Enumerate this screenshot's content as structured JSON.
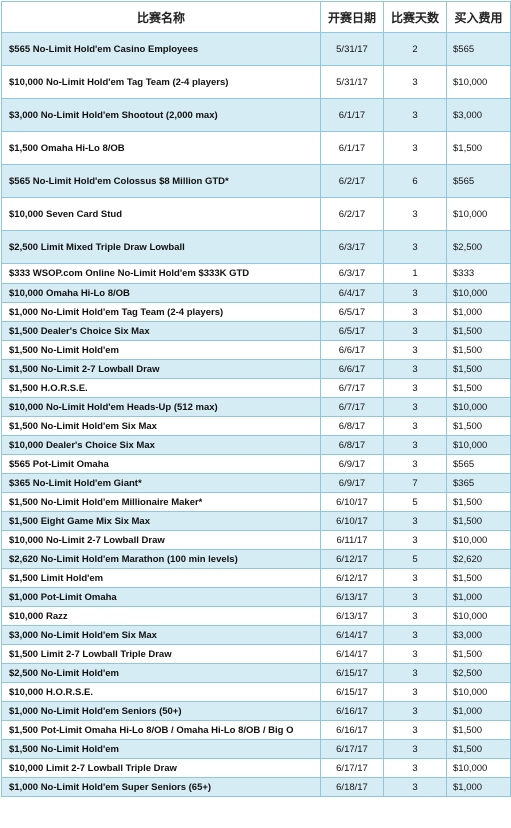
{
  "table": {
    "headers": {
      "name": "比赛名称",
      "date": "开赛日期",
      "days": "比赛天数",
      "fee": "买入费用"
    },
    "rows": [
      {
        "name": "$565 No-Limit Hold'em Casino Employees",
        "date": "5/31/17",
        "days": "2",
        "fee": "$565"
      },
      {
        "name": "$10,000 No-Limit Hold'em Tag Team (2-4 players)",
        "date": "5/31/17",
        "days": "3",
        "fee": "$10,000"
      },
      {
        "name": "$3,000 No-Limit Hold'em Shootout (2,000 max)",
        "date": "6/1/17",
        "days": "3",
        "fee": "$3,000"
      },
      {
        "name": "$1,500 Omaha Hi-Lo 8/OB",
        "date": "6/1/17",
        "days": "3",
        "fee": "$1,500"
      },
      {
        "name": "$565 No-Limit Hold'em Colossus $8 Million GTD*",
        "date": "6/2/17",
        "days": "6",
        "fee": "$565"
      },
      {
        "name": "$10,000 Seven Card Stud",
        "date": "6/2/17",
        "days": "3",
        "fee": "$10,000"
      },
      {
        "name": "$2,500 Limit Mixed Triple Draw Lowball",
        "date": "6/3/17",
        "days": "3",
        "fee": "$2,500"
      },
      {
        "name": "$333 WSOP.com Online No-Limit Hold'em $333K GTD",
        "date": "6/3/17",
        "days": "1",
        "fee": "$333"
      },
      {
        "name": "$10,000 Omaha Hi-Lo 8/OB",
        "date": "6/4/17",
        "days": "3",
        "fee": "$10,000"
      },
      {
        "name": "$1,000 No-Limit Hold'em Tag Team (2-4 players)",
        "date": "6/5/17",
        "days": "3",
        "fee": "$1,000"
      },
      {
        "name": "$1,500 Dealer's Choice Six Max",
        "date": "6/5/17",
        "days": "3",
        "fee": "$1,500"
      },
      {
        "name": "$1,500 No-Limit Hold'em",
        "date": "6/6/17",
        "days": "3",
        "fee": "$1,500"
      },
      {
        "name": "$1,500 No-Limit 2-7 Lowball Draw",
        "date": "6/6/17",
        "days": "3",
        "fee": "$1,500"
      },
      {
        "name": "$1,500 H.O.R.S.E.",
        "date": "6/7/17",
        "days": "3",
        "fee": "$1,500"
      },
      {
        "name": "$10,000 No-Limit Hold'em Heads-Up (512 max)",
        "date": "6/7/17",
        "days": "3",
        "fee": "$10,000"
      },
      {
        "name": "$1,500 No-Limit Hold'em Six Max",
        "date": "6/8/17",
        "days": "3",
        "fee": "$1,500"
      },
      {
        "name": "$10,000 Dealer's Choice Six Max",
        "date": "6/8/17",
        "days": "3",
        "fee": "$10,000"
      },
      {
        "name": "$565 Pot-Limit Omaha",
        "date": "6/9/17",
        "days": "3",
        "fee": "$565"
      },
      {
        "name": "$365 No-Limit Hold'em Giant*",
        "date": "6/9/17",
        "days": "7",
        "fee": "$365"
      },
      {
        "name": "$1,500 No-Limit Hold'em Millionaire Maker*",
        "date": "6/10/17",
        "days": "5",
        "fee": "$1,500"
      },
      {
        "name": "$1,500 Eight Game Mix Six Max",
        "date": "6/10/17",
        "days": "3",
        "fee": "$1,500"
      },
      {
        "name": "$10,000 No-Limit 2-7 Lowball Draw",
        "date": "6/11/17",
        "days": "3",
        "fee": "$10,000"
      },
      {
        "name": "$2,620 No-Limit Hold'em Marathon (100 min levels)",
        "date": "6/12/17",
        "days": "5",
        "fee": "$2,620"
      },
      {
        "name": "$1,500 Limit Hold'em",
        "date": "6/12/17",
        "days": "3",
        "fee": "$1,500"
      },
      {
        "name": "$1,000 Pot-Limit Omaha",
        "date": "6/13/17",
        "days": "3",
        "fee": "$1,000"
      },
      {
        "name": "$10,000 Razz",
        "date": "6/13/17",
        "days": "3",
        "fee": "$10,000"
      },
      {
        "name": "$3,000 No-Limit Hold'em Six Max",
        "date": "6/14/17",
        "days": "3",
        "fee": "$3,000"
      },
      {
        "name": "$1,500 Limit 2-7 Lowball Triple Draw",
        "date": "6/14/17",
        "days": "3",
        "fee": "$1,500"
      },
      {
        "name": "$2,500 No-Limit Hold'em",
        "date": "6/15/17",
        "days": "3",
        "fee": "$2,500"
      },
      {
        "name": "$10,000 H.O.R.S.E.",
        "date": "6/15/17",
        "days": "3",
        "fee": "$10,000"
      },
      {
        "name": "$1,000 No-Limit Hold'em Seniors (50+)",
        "date": "6/16/17",
        "days": "3",
        "fee": "$1,000"
      },
      {
        "name": "$1,500 Pot-Limit Omaha Hi-Lo 8/OB / Omaha Hi-Lo 8/OB / Big O",
        "date": "6/16/17",
        "days": "3",
        "fee": "$1,500"
      },
      {
        "name": "$1,500 No-Limit Hold'em",
        "date": "6/17/17",
        "days": "3",
        "fee": "$1,500"
      },
      {
        "name": "$10,000 Limit 2-7 Lowball Triple Draw",
        "date": "6/17/17",
        "days": "3",
        "fee": "$10,000"
      },
      {
        "name": "$1,000 No-Limit Hold'em Super Seniors (65+)",
        "date": "6/18/17",
        "days": "3",
        "fee": "$1,000"
      }
    ]
  }
}
